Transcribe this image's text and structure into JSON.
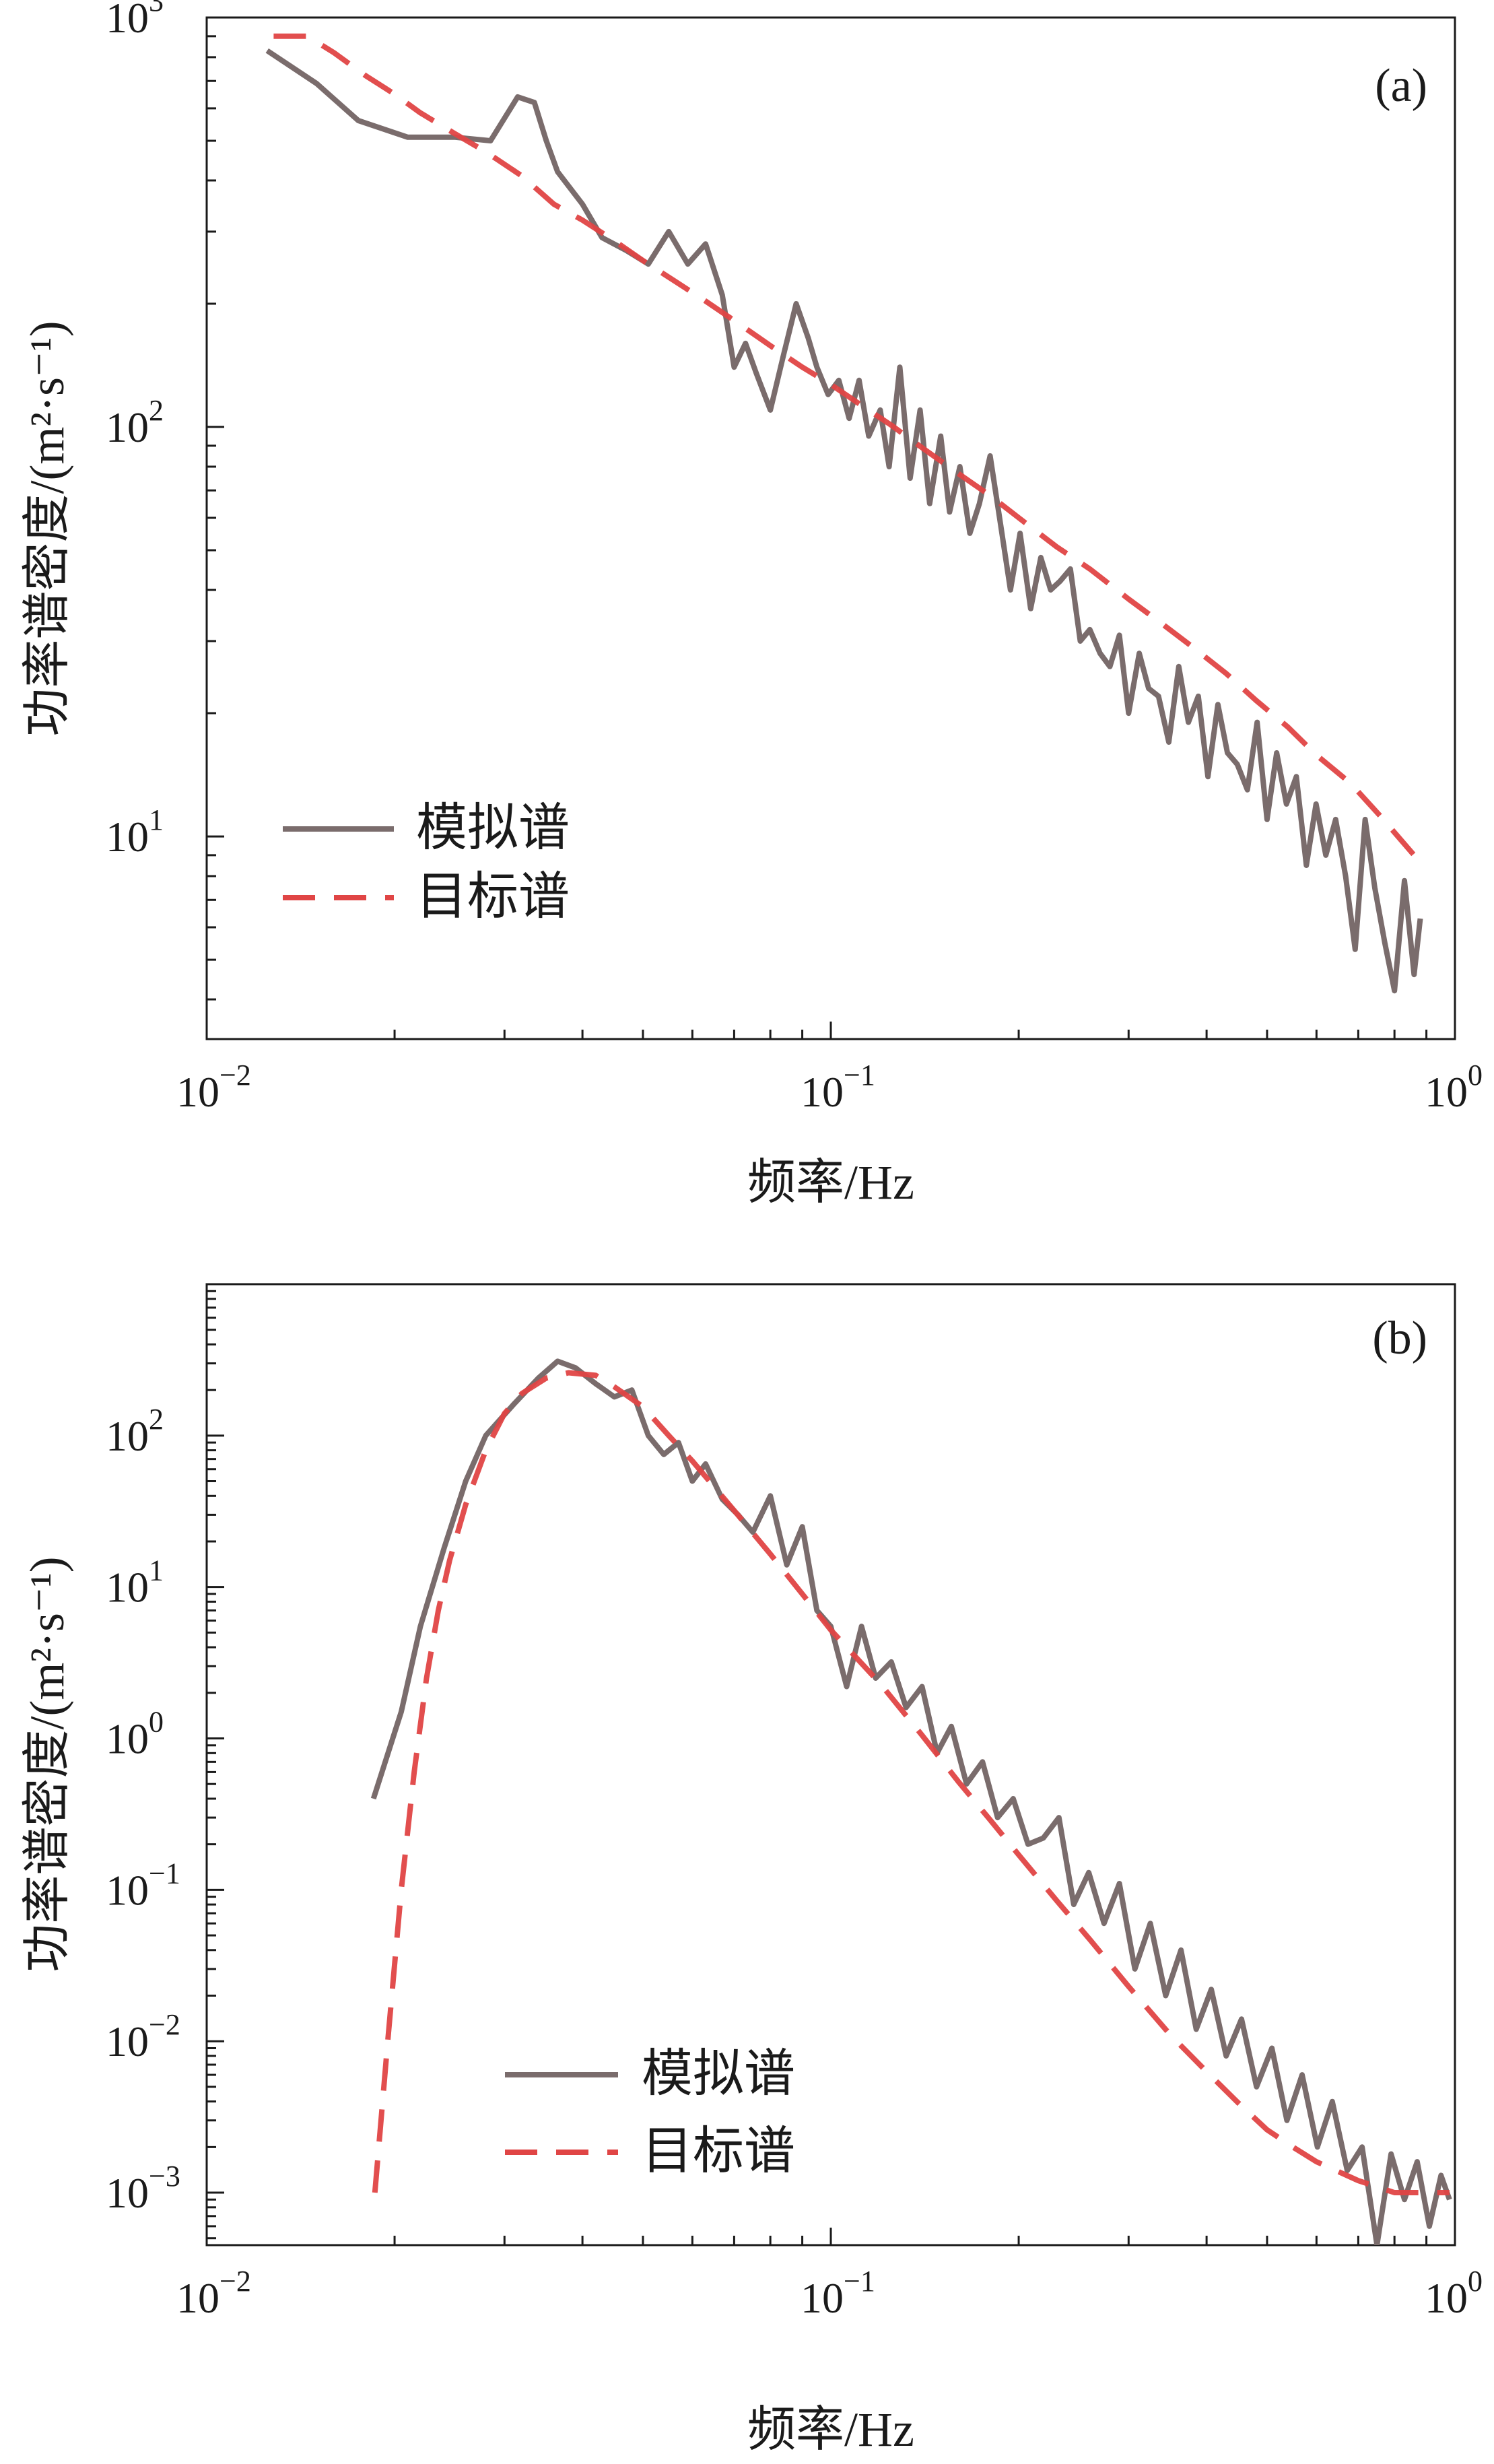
{
  "colors": {
    "simulated": "#7a6c6c",
    "target": "#e04545",
    "axis": "#1a1a1a"
  },
  "chart_data": [
    {
      "type": "line",
      "panel_label": "(a)",
      "xscale": "log",
      "yscale": "log",
      "xlim": [
        0.01,
        1
      ],
      "ylim": [
        3.2,
        1000
      ],
      "xlabel": "频率/Hz",
      "ylabel": "功率谱密度/(m²·s⁻¹)",
      "xticks": [
        {
          "value": 0.01,
          "base": "10",
          "exp": "−2"
        },
        {
          "value": 0.1,
          "base": "10",
          "exp": "−1"
        },
        {
          "value": 1,
          "base": "10",
          "exp": "0"
        }
      ],
      "yticks": [
        {
          "value": 10,
          "base": "10",
          "exp": "1"
        },
        {
          "value": 100,
          "base": "10",
          "exp": "2"
        },
        {
          "value": 1000,
          "base": "10",
          "exp": "3"
        }
      ],
      "legend": {
        "position": "bottom-left",
        "entries": [
          "模拟谱",
          "目标谱"
        ]
      },
      "series": [
        {
          "name": "模拟谱",
          "style": "solid",
          "x": [
            0.0125,
            0.015,
            0.0175,
            0.021,
            0.025,
            0.0285,
            0.0315,
            0.0335,
            0.035,
            0.0365,
            0.04,
            0.043,
            0.047,
            0.051,
            0.055,
            0.059,
            0.063,
            0.067,
            0.07,
            0.073,
            0.076,
            0.08,
            0.084,
            0.088,
            0.092,
            0.095,
            0.099,
            0.103,
            0.107,
            0.111,
            0.115,
            0.12,
            0.124,
            0.129,
            0.134,
            0.139,
            0.144,
            0.15,
            0.155,
            0.161,
            0.167,
            0.173,
            0.18,
            0.187,
            0.194,
            0.201,
            0.209,
            0.217,
            0.225,
            0.233,
            0.242,
            0.251,
            0.26,
            0.27,
            0.28,
            0.29,
            0.3,
            0.312,
            0.323,
            0.335,
            0.348,
            0.361,
            0.374,
            0.388,
            0.402,
            0.417,
            0.432,
            0.448,
            0.465,
            0.482,
            0.5,
            0.518,
            0.537,
            0.557,
            0.578,
            0.599,
            0.621,
            0.644,
            0.668,
            0.692,
            0.718,
            0.744,
            0.772,
            0.8,
            0.83,
            0.86,
            0.88
          ],
          "y": [
            830,
            690,
            560,
            510,
            510,
            500,
            640,
            620,
            500,
            420,
            350,
            290,
            270,
            250,
            300,
            250,
            280,
            210,
            140,
            160,
            135,
            110,
            150,
            200,
            165,
            140,
            120,
            130,
            105,
            130,
            95,
            110,
            80,
            140,
            75,
            110,
            65,
            95,
            62,
            80,
            55,
            65,
            85,
            58,
            40,
            55,
            36,
            48,
            40,
            42,
            45,
            30,
            32,
            28,
            26,
            31,
            20,
            28,
            23,
            22,
            17,
            26,
            19,
            22,
            14,
            21,
            16,
            15,
            13,
            19,
            11,
            16,
            12,
            14,
            8.5,
            12,
            9,
            11,
            8,
            5.3,
            11,
            7.5,
            5.5,
            4.2,
            7.8,
            4.6,
            6.3
          ]
        },
        {
          "name": "目标谱",
          "style": "dashed",
          "x": [
            0.0128,
            0.0145,
            0.016,
            0.018,
            0.02,
            0.022,
            0.025,
            0.028,
            0.032,
            0.036,
            0.04,
            0.045,
            0.05,
            0.056,
            0.063,
            0.07,
            0.08,
            0.09,
            0.1,
            0.11,
            0.125,
            0.14,
            0.16,
            0.18,
            0.2,
            0.23,
            0.26,
            0.3,
            0.34,
            0.38,
            0.43,
            0.48,
            0.54,
            0.6,
            0.68,
            0.76,
            0.86
          ],
          "y": [
            900,
            900,
            820,
            720,
            650,
            585,
            520,
            470,
            410,
            350,
            320,
            285,
            255,
            228,
            203,
            182,
            158,
            140,
            127,
            115,
            101,
            89,
            77,
            68,
            60,
            51,
            45,
            38,
            33,
            29,
            25,
            21.5,
            18.5,
            15.8,
            13.5,
            11.2,
            9
          ]
        }
      ]
    },
    {
      "type": "line",
      "panel_label": "(b)",
      "xscale": "log",
      "yscale": "log",
      "xlim": [
        0.01,
        1
      ],
      "ylim": [
        0.00045,
        1000
      ],
      "xlabel": "频率/Hz",
      "ylabel": "功率谱密度/(m²·s⁻¹)",
      "xticks": [
        {
          "value": 0.01,
          "base": "10",
          "exp": "−2"
        },
        {
          "value": 0.1,
          "base": "10",
          "exp": "−1"
        },
        {
          "value": 1,
          "base": "10",
          "exp": "0"
        }
      ],
      "yticks": [
        {
          "value": 0.001,
          "base": "10",
          "exp": "−3"
        },
        {
          "value": 0.01,
          "base": "10",
          "exp": "−2"
        },
        {
          "value": 0.1,
          "base": "10",
          "exp": "−1"
        },
        {
          "value": 1,
          "base": "10",
          "exp": "0"
        },
        {
          "value": 10,
          "base": "10",
          "exp": "1"
        },
        {
          "value": 100,
          "base": "10",
          "exp": "2"
        }
      ],
      "legend": {
        "position": "bottom-center",
        "entries": [
          "模拟谱",
          "目标谱"
        ]
      },
      "series": [
        {
          "name": "模拟谱",
          "style": "solid",
          "x": [
            0.0185,
            0.0205,
            0.022,
            0.024,
            0.026,
            0.028,
            0.031,
            0.034,
            0.0365,
            0.039,
            0.042,
            0.045,
            0.048,
            0.051,
            0.054,
            0.057,
            0.06,
            0.063,
            0.067,
            0.071,
            0.075,
            0.08,
            0.085,
            0.09,
            0.095,
            0.1,
            0.106,
            0.112,
            0.118,
            0.125,
            0.132,
            0.14,
            0.148,
            0.156,
            0.165,
            0.175,
            0.185,
            0.196,
            0.207,
            0.219,
            0.232,
            0.245,
            0.259,
            0.274,
            0.29,
            0.307,
            0.325,
            0.344,
            0.364,
            0.385,
            0.407,
            0.43,
            0.455,
            0.481,
            0.509,
            0.538,
            0.569,
            0.602,
            0.636,
            0.672,
            0.71,
            0.75,
            0.79,
            0.83,
            0.87,
            0.91,
            0.95,
            0.98
          ],
          "y": [
            0.4,
            1.5,
            5.5,
            18,
            50,
            100,
            160,
            240,
            310,
            280,
            220,
            180,
            200,
            100,
            75,
            90,
            50,
            65,
            38,
            30,
            23,
            40,
            14,
            25,
            7,
            5.5,
            2.2,
            5.5,
            2.5,
            3.2,
            1.6,
            2.2,
            0.8,
            1.2,
            0.5,
            0.7,
            0.3,
            0.4,
            0.2,
            0.22,
            0.3,
            0.08,
            0.13,
            0.06,
            0.11,
            0.03,
            0.06,
            0.02,
            0.04,
            0.012,
            0.022,
            0.008,
            0.014,
            0.005,
            0.009,
            0.003,
            0.006,
            0.002,
            0.004,
            0.0014,
            0.002,
            0.00045,
            0.0018,
            0.0009,
            0.0016,
            0.0006,
            0.0013,
            0.0009
          ]
        },
        {
          "name": "目标谱",
          "style": "dashed",
          "x": [
            0.0186,
            0.0195,
            0.0205,
            0.0215,
            0.0225,
            0.0235,
            0.0245,
            0.026,
            0.028,
            0.03,
            0.032,
            0.035,
            0.038,
            0.042,
            0.045,
            0.05,
            0.055,
            0.06,
            0.07,
            0.08,
            0.09,
            0.1,
            0.12,
            0.14,
            0.16,
            0.18,
            0.2,
            0.23,
            0.26,
            0.3,
            0.35,
            0.4,
            0.45,
            0.5,
            0.55,
            0.6,
            0.7,
            0.8,
            0.9,
            0.98
          ],
          "y": [
            0.001,
            0.01,
            0.1,
            0.6,
            2.5,
            7,
            15,
            35,
            80,
            140,
            190,
            240,
            260,
            250,
            210,
            155,
            100,
            68,
            32,
            16.5,
            9,
            5.2,
            2.3,
            1.05,
            0.52,
            0.29,
            0.17,
            0.085,
            0.047,
            0.023,
            0.011,
            0.0063,
            0.0039,
            0.0026,
            0.002,
            0.0016,
            0.0012,
            0.001,
            0.001,
            0.001
          ]
        }
      ]
    }
  ]
}
